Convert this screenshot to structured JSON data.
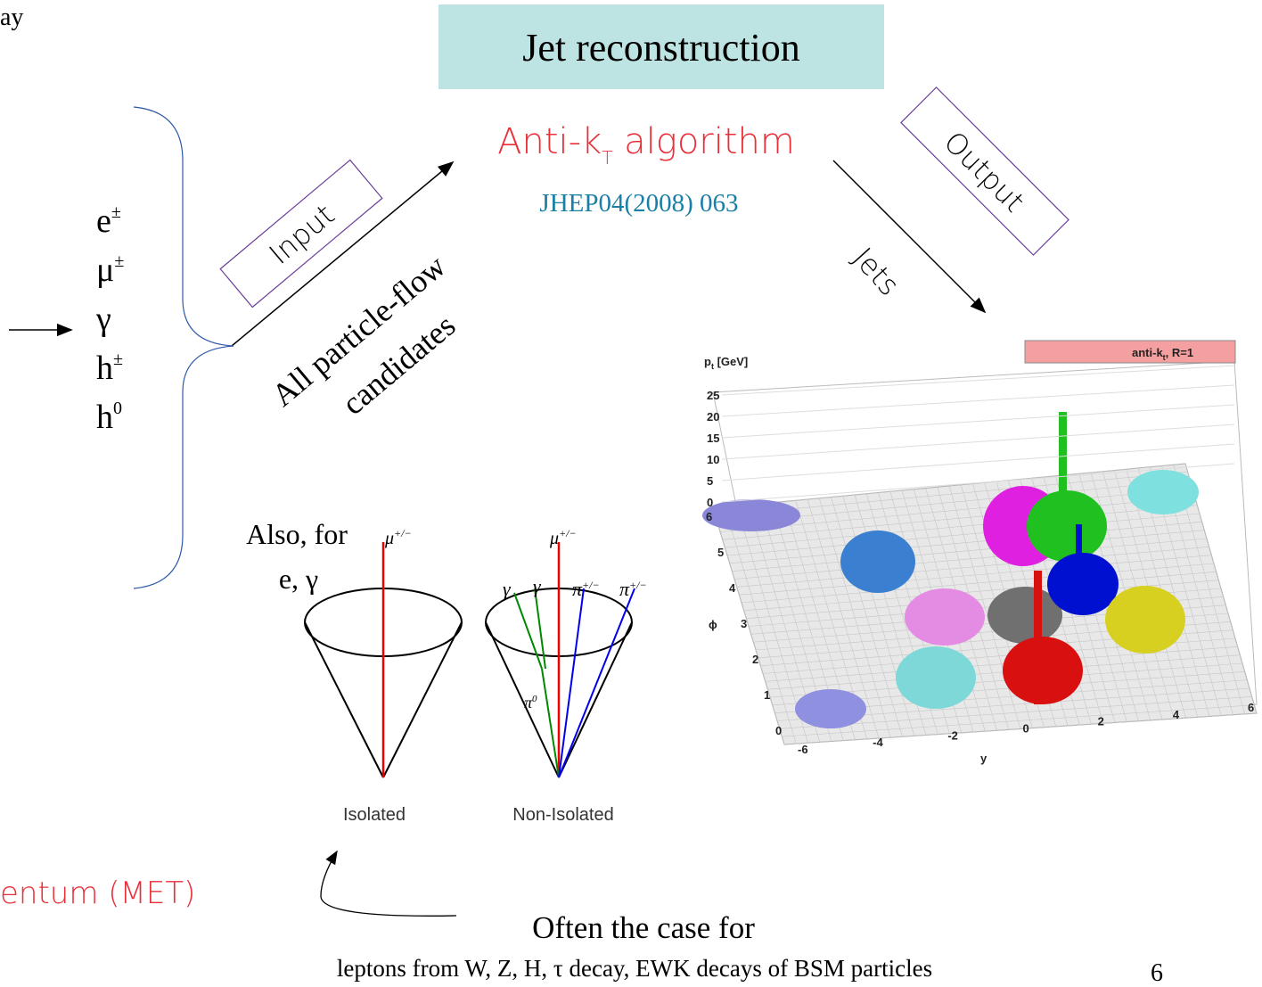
{
  "slide": {
    "corner_text": "ay",
    "header": {
      "title": "Jet reconstruction"
    },
    "algorithm": {
      "name": "Anti-k",
      "subscript": "T",
      "suffix": " algorithm",
      "reference": "JHEP04(2008) 063"
    },
    "input_label": "Input",
    "output_label": "Output",
    "jets_label": "Jets",
    "candidates": {
      "line1": "All particle-flow",
      "line2": "candidates"
    },
    "particles": [
      {
        "base": "e",
        "sup": "±"
      },
      {
        "base": "μ",
        "sup": "±"
      },
      {
        "base": "γ",
        "sup": ""
      },
      {
        "base": "h",
        "sup": "±"
      },
      {
        "base": "h",
        "sup": "0"
      }
    ],
    "also_note": {
      "line1": "Also, for",
      "line2": "e, γ"
    },
    "cones": {
      "isolated": {
        "label": "Isolated",
        "muon": "μ",
        "muon_sup": "+/−"
      },
      "non_isolated": {
        "label": "Non-Isolated",
        "muon": "μ",
        "muon_sup": "+/−",
        "photons": [
          "γ",
          "γ"
        ],
        "pions": [
          {
            "base": "π",
            "sup": "+/−"
          },
          {
            "base": "π",
            "sup": "+/−"
          }
        ],
        "neutral_pion": {
          "base": "π",
          "sup": "0"
        }
      }
    },
    "met_text": "entum (MET)",
    "note": {
      "line1": "Often the case for",
      "line2": "leptons from W, Z, H, τ decay, EWK decays of BSM particles"
    },
    "page_number": "6",
    "plot": {
      "z_label": {
        "base": "p",
        "sub": "t",
        "suffix": " [GeV]"
      },
      "legend": {
        "base": "anti-k",
        "sub": "t",
        "suffix": ", R=1"
      },
      "z_ticks": [
        "25",
        "20",
        "15",
        "10",
        "5",
        "0"
      ],
      "phi_label": "ϕ",
      "phi_ticks": [
        "6",
        "5",
        "4",
        "3",
        "2",
        "1",
        "0"
      ],
      "y_label": "y",
      "y_ticks": [
        "-6",
        "-4",
        "-2",
        "0",
        "2",
        "4",
        "6"
      ]
    }
  }
}
